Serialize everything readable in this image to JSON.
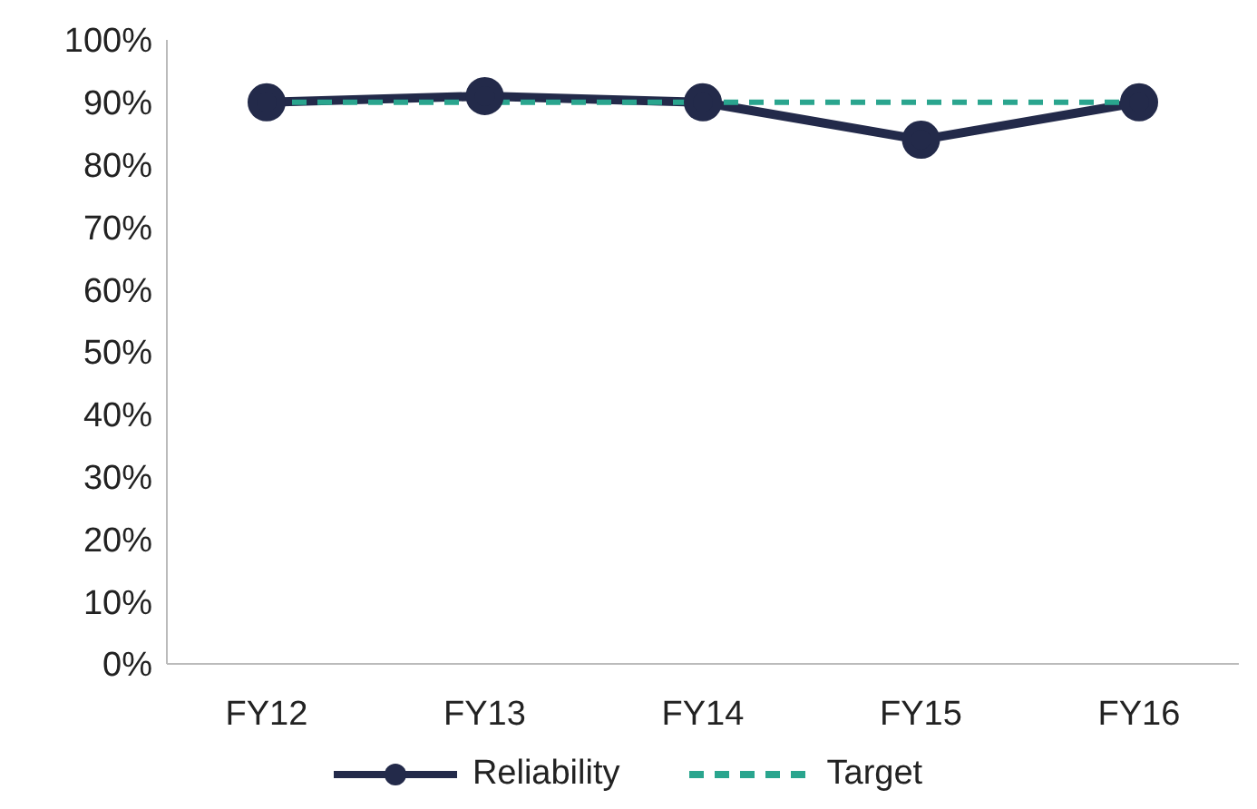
{
  "chart_data": {
    "type": "line",
    "categories": [
      "FY12",
      "FY13",
      "FY14",
      "FY15",
      "FY16"
    ],
    "series": [
      {
        "name": "Reliability",
        "color": "#232a4a",
        "values": [
          90,
          91,
          90,
          84,
          90
        ],
        "marker": "circle",
        "line_style": "solid"
      },
      {
        "name": "Target",
        "color": "#2aa58e",
        "values": [
          90,
          90,
          90,
          90,
          90
        ],
        "marker": "none",
        "line_style": "dashed"
      }
    ],
    "ylim": [
      0,
      100
    ],
    "yticks": [
      {
        "value": 0,
        "label": "0%"
      },
      {
        "value": 10,
        "label": "10%"
      },
      {
        "value": 20,
        "label": "20%"
      },
      {
        "value": 30,
        "label": "30%"
      },
      {
        "value": 40,
        "label": "40%"
      },
      {
        "value": 50,
        "label": "50%"
      },
      {
        "value": 60,
        "label": "60%"
      },
      {
        "value": 70,
        "label": "70%"
      },
      {
        "value": 80,
        "label": "80%"
      },
      {
        "value": 90,
        "label": "90%"
      },
      {
        "value": 100,
        "label": "100%"
      }
    ],
    "grid": false,
    "legend": "bottom"
  }
}
